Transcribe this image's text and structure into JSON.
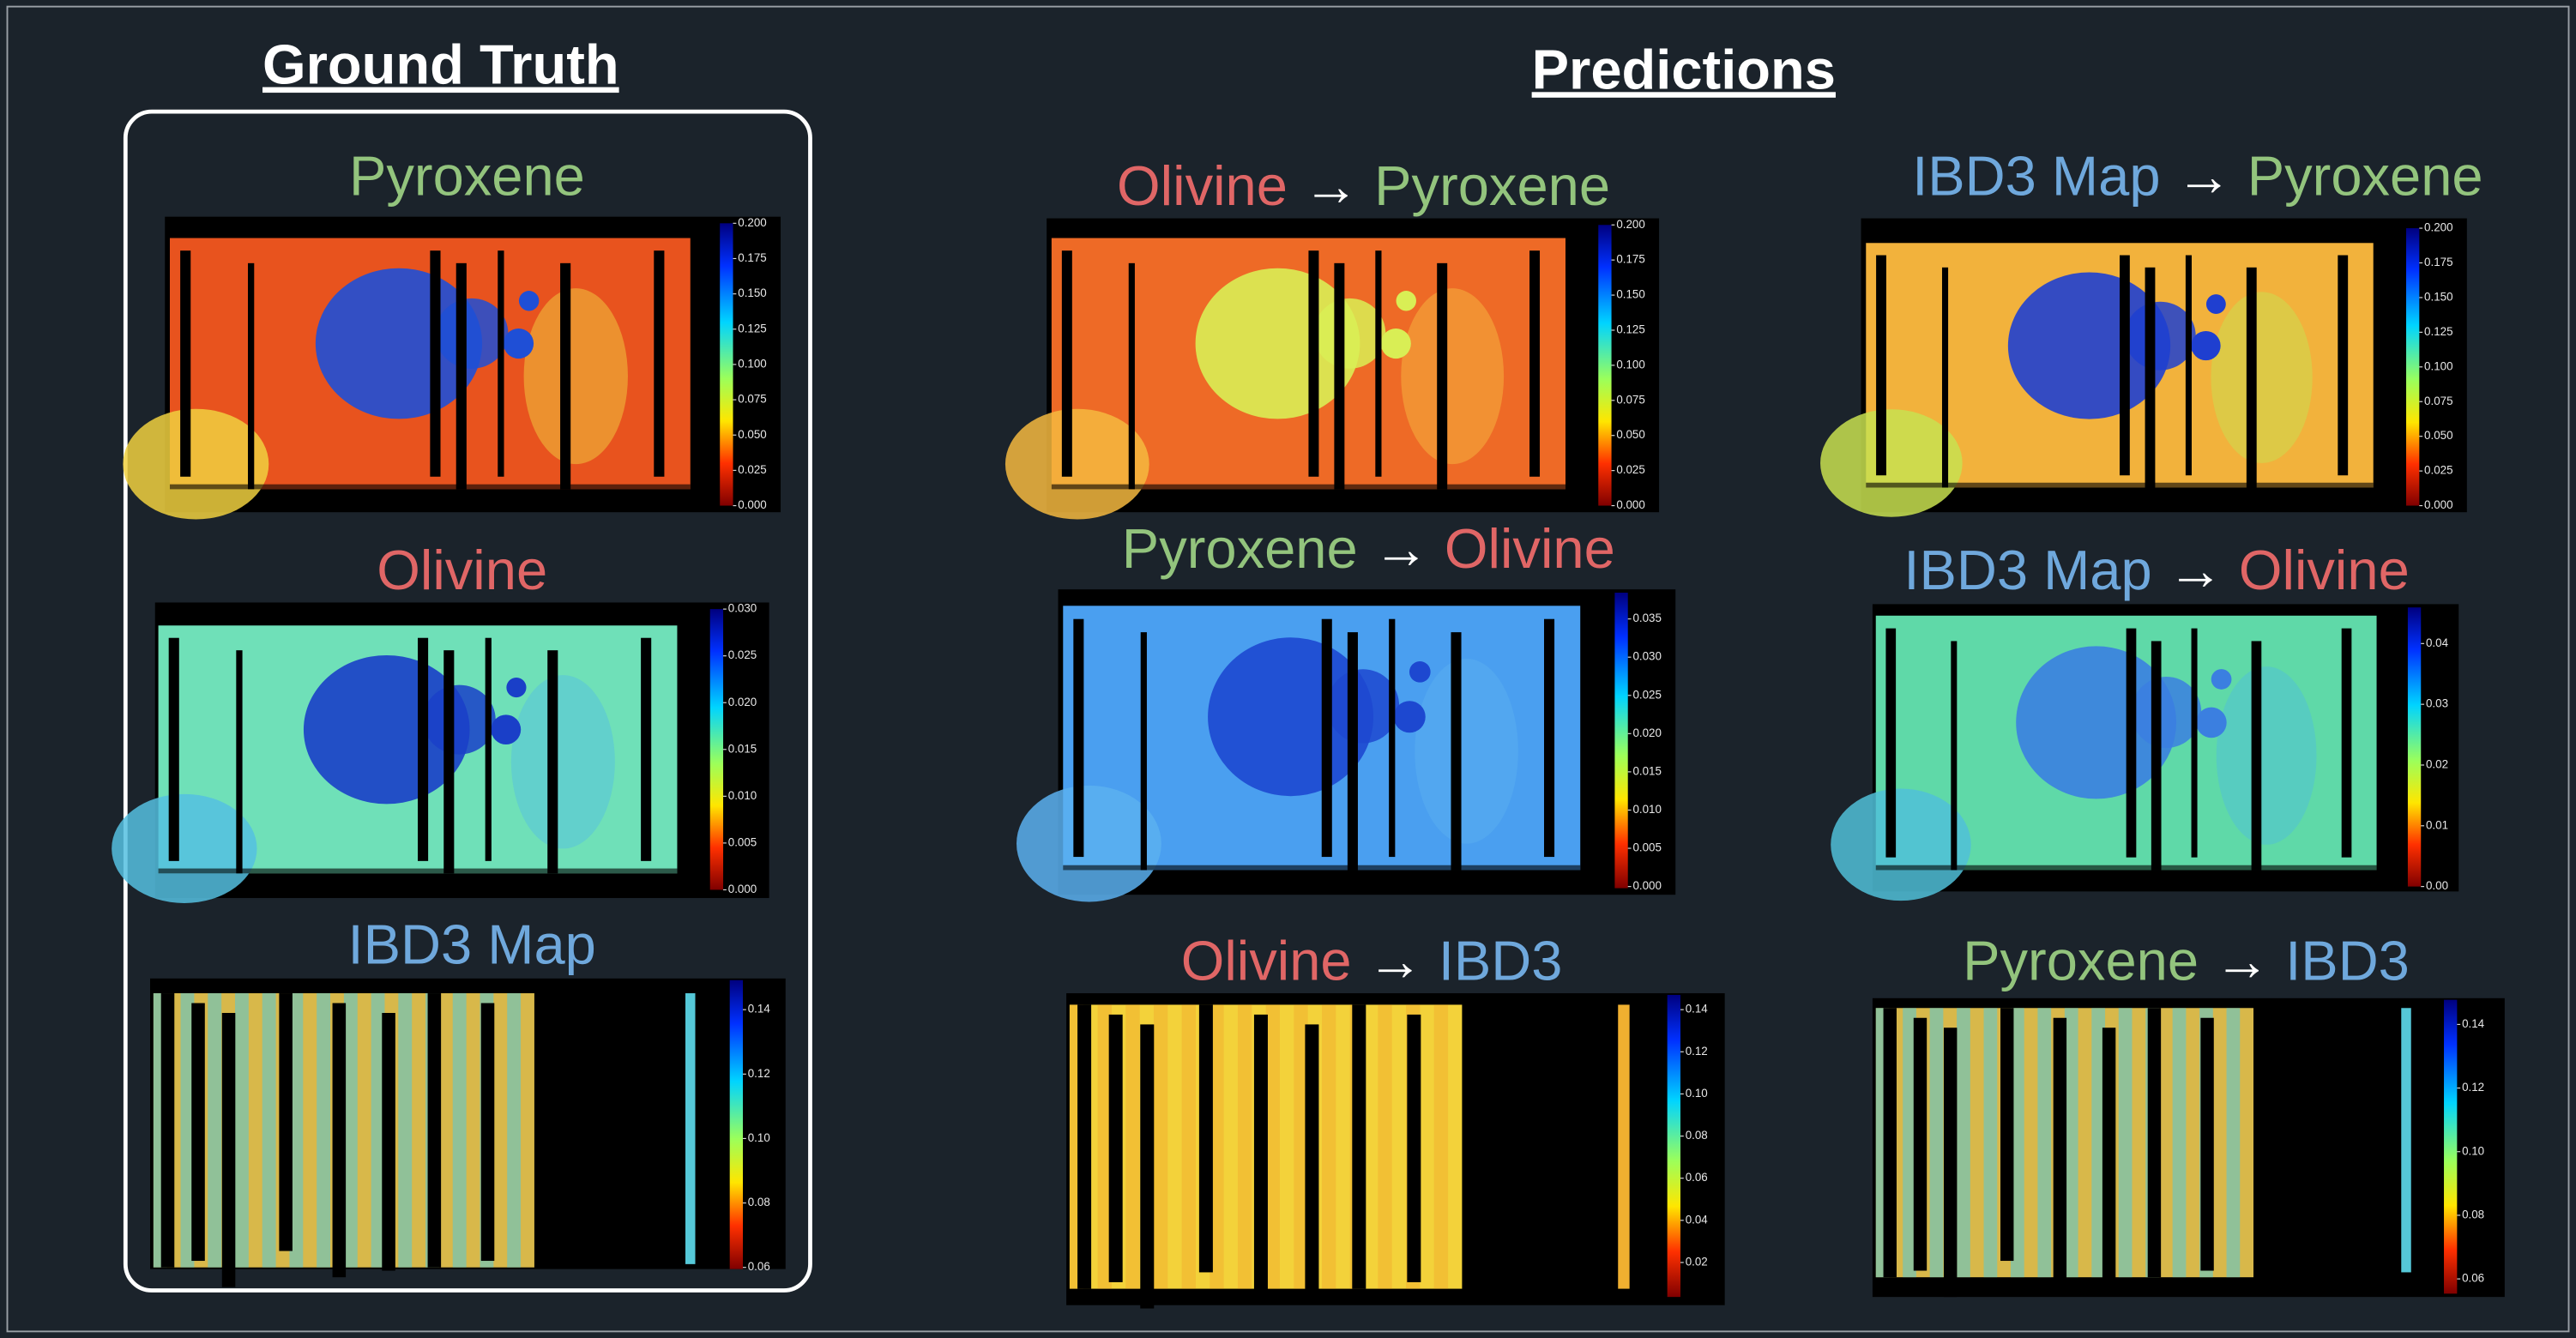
{
  "header": {
    "ground_truth": "Ground Truth",
    "predictions": "Predictions"
  },
  "panels": [
    {
      "title": [
        {
          "text": "Pyroxene",
          "color": "#93c47d"
        }
      ],
      "ticks": [
        "0.200",
        "0.175",
        "0.150",
        "0.125",
        "0.100",
        "0.075",
        "0.050",
        "0.025",
        "0.000"
      ]
    },
    {
      "title": [
        {
          "text": "Olivine",
          "color": "#e06666"
        }
      ],
      "ticks": [
        "0.030",
        "0.025",
        "0.020",
        "0.015",
        "0.010",
        "0.005",
        "0.000"
      ]
    },
    {
      "title": [
        {
          "text": "IBD3 Map",
          "color": "#6fa8dc"
        }
      ],
      "ticks": [
        "0.14",
        "0.12",
        "0.10",
        "0.08",
        "0.06"
      ]
    },
    {
      "title": [
        {
          "text": "Olivine",
          "color": "#e06666"
        },
        {
          "text": "→",
          "color": "#ffffff"
        },
        {
          "text": "Pyroxene",
          "color": "#93c47d"
        }
      ],
      "ticks": [
        "0.200",
        "0.175",
        "0.150",
        "0.125",
        "0.100",
        "0.075",
        "0.050",
        "0.025",
        "0.000"
      ]
    },
    {
      "title": [
        {
          "text": "Pyroxene",
          "color": "#93c47d"
        },
        {
          "text": "→",
          "color": "#ffffff"
        },
        {
          "text": "Olivine",
          "color": "#e06666"
        }
      ],
      "ticks": [
        "0.035",
        "0.030",
        "0.025",
        "0.020",
        "0.015",
        "0.010",
        "0.005",
        "0.000"
      ]
    },
    {
      "title": [
        {
          "text": "Olivine",
          "color": "#e06666"
        },
        {
          "text": "→",
          "color": "#ffffff"
        },
        {
          "text": "IBD3",
          "color": "#6fa8dc"
        }
      ],
      "ticks": [
        "0.14",
        "0.12",
        "0.10",
        "0.08",
        "0.06",
        "0.04",
        "0.02"
      ]
    },
    {
      "title": [
        {
          "text": "IBD3 Map",
          "color": "#6fa8dc"
        },
        {
          "text": "→",
          "color": "#ffffff"
        },
        {
          "text": "Pyroxene",
          "color": "#93c47d"
        }
      ],
      "ticks": [
        "0.200",
        "0.175",
        "0.150",
        "0.125",
        "0.100",
        "0.075",
        "0.050",
        "0.025",
        "0.000"
      ]
    },
    {
      "title": [
        {
          "text": "IBD3 Map",
          "color": "#6fa8dc"
        },
        {
          "text": "→",
          "color": "#ffffff"
        },
        {
          "text": "Olivine",
          "color": "#e06666"
        }
      ],
      "ticks": [
        "0.04",
        "0.03",
        "0.02",
        "0.01",
        "0.00"
      ]
    },
    {
      "title": [
        {
          "text": "Pyroxene",
          "color": "#93c47d"
        },
        {
          "text": "→",
          "color": "#ffffff"
        },
        {
          "text": "IBD3",
          "color": "#6fa8dc"
        }
      ],
      "ticks": [
        "0.14",
        "0.12",
        "0.10",
        "0.08",
        "0.06"
      ]
    }
  ]
}
